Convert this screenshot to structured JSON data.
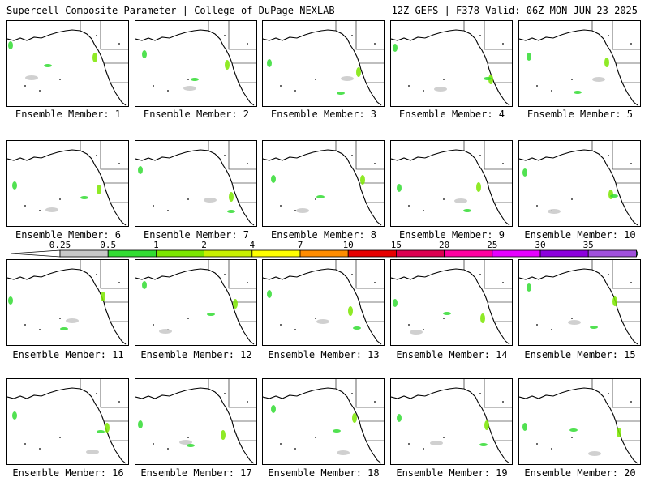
{
  "header": {
    "title": "Supercell Composite Parameter | College of DuPage NEXLAB",
    "run_info": "12Z GEFS | F378 Valid: 06Z MON JUN 23 2025"
  },
  "panels": [
    {
      "member": 1,
      "label": "Ensemble Member: 1"
    },
    {
      "member": 2,
      "label": "Ensemble Member: 2"
    },
    {
      "member": 3,
      "label": "Ensemble Member: 3"
    },
    {
      "member": 4,
      "label": "Ensemble Member: 4"
    },
    {
      "member": 5,
      "label": "Ensemble Member: 5"
    },
    {
      "member": 6,
      "label": "Ensemble Member: 6"
    },
    {
      "member": 7,
      "label": "Ensemble Member: 7"
    },
    {
      "member": 8,
      "label": "Ensemble Member: 8"
    },
    {
      "member": 9,
      "label": "Ensemble Member: 9"
    },
    {
      "member": 10,
      "label": "Ensemble Member: 10"
    },
    {
      "member": 11,
      "label": "Ensemble Member: 11"
    },
    {
      "member": 12,
      "label": "Ensemble Member: 12"
    },
    {
      "member": 13,
      "label": "Ensemble Member: 13"
    },
    {
      "member": 14,
      "label": "Ensemble Member: 14"
    },
    {
      "member": 15,
      "label": "Ensemble Member: 15"
    },
    {
      "member": 16,
      "label": "Ensemble Member: 16"
    },
    {
      "member": 17,
      "label": "Ensemble Member: 17"
    },
    {
      "member": 18,
      "label": "Ensemble Member: 18"
    },
    {
      "member": 19,
      "label": "Ensemble Member: 19"
    },
    {
      "member": 20,
      "label": "Ensemble Member: 20"
    }
  ],
  "colorbar": {
    "labels": [
      "0.25",
      "0.5",
      "1",
      "2",
      "4",
      "7",
      "10",
      "15",
      "20",
      "25",
      "30",
      "35"
    ],
    "colors": [
      "#c8c8c8",
      "#32dc32",
      "#7be600",
      "#c8f000",
      "#ffff00",
      "#ff8c00",
      "#e60000",
      "#dc0050",
      "#ff00a0",
      "#e600ff",
      "#8c00dc",
      "#a050dc",
      "#28dcdc"
    ]
  }
}
